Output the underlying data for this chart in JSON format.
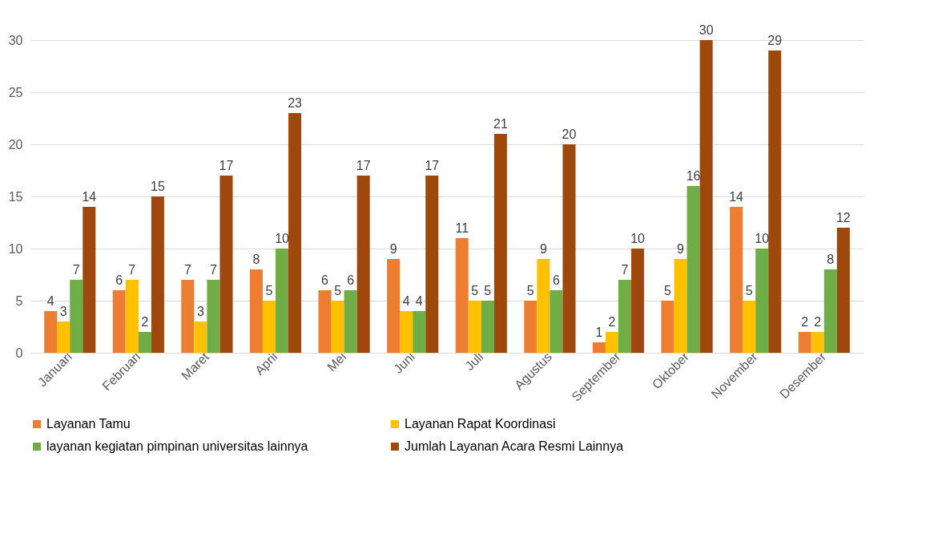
{
  "chart_data": {
    "type": "bar",
    "categories": [
      "Januari",
      "Februari",
      "Maret",
      "April",
      "Mei",
      "Juni",
      "Juli",
      "Agustus",
      "September",
      "Oktober",
      "November",
      "Desember"
    ],
    "series": [
      {
        "name": "Layanan Tamu",
        "color": "#ed7d31",
        "values": [
          4,
          6,
          7,
          8,
          6,
          9,
          11,
          5,
          1,
          5,
          14,
          2
        ]
      },
      {
        "name": "Layanan Rapat Koordinasi",
        "color": "#ffc000",
        "values": [
          3,
          7,
          3,
          5,
          5,
          4,
          5,
          9,
          2,
          9,
          5,
          2
        ]
      },
      {
        "name": "layanan kegiatan pimpinan universitas lainnya",
        "color": "#70ad47",
        "values": [
          7,
          2,
          7,
          10,
          6,
          4,
          5,
          6,
          7,
          16,
          10,
          8
        ]
      },
      {
        "name": "Jumlah Layanan Acara Resmi Lainnya",
        "color": "#9e480e",
        "values": [
          14,
          15,
          17,
          23,
          17,
          17,
          21,
          20,
          10,
          30,
          29,
          12
        ]
      }
    ],
    "ylim": [
      0,
      30
    ],
    "yticks": [
      0,
      5,
      10,
      15,
      20,
      25,
      30
    ],
    "grid": "y",
    "legend": "bottom",
    "data_labels": true
  }
}
